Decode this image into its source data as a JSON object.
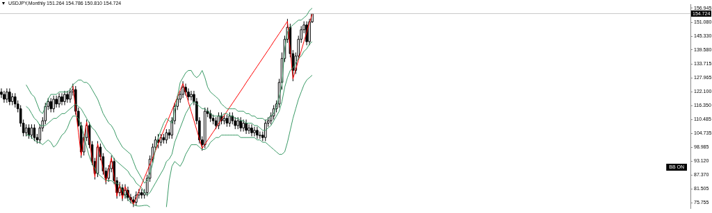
{
  "chart_data": {
    "type": "candlestick",
    "title": "USDJPY,Monthly 151.264 154.786 150.810 154.724",
    "color": "#000000",
    "categories": [
      null,
      null,
      null,
      null,
      null,
      null,
      null,
      null,
      null,
      null,
      null,
      null,
      null,
      null,
      null,
      null,
      null,
      null,
      null,
      null,
      null,
      null,
      null,
      null,
      null,
      null,
      null,
      null,
      null,
      null,
      null,
      null,
      null,
      null,
      null,
      null,
      null,
      null,
      null,
      null,
      null,
      null,
      null,
      null,
      null,
      null,
      null,
      null,
      null,
      null,
      null,
      null,
      null,
      null,
      null,
      null,
      null,
      null,
      null,
      null,
      null,
      null,
      null,
      null,
      null,
      null,
      null,
      null,
      null,
      null,
      null,
      null,
      null,
      null,
      null,
      null,
      null,
      null,
      null,
      null,
      null,
      null,
      null,
      null,
      null,
      null,
      null,
      null,
      null,
      null,
      null,
      null,
      null,
      null,
      null,
      null,
      null,
      null,
      null,
      null,
      null,
      null,
      null,
      null,
      null,
      null,
      null,
      null,
      null,
      null,
      null,
      null,
      null,
      null,
      null,
      null,
      null,
      null,
      null,
      null,
      null,
      null,
      null,
      null,
      null,
      null,
      null,
      null,
      null,
      null,
      null,
      null,
      null,
      null,
      null,
      null,
      null,
      null,
      null,
      null,
      null,
      null,
      null,
      null,
      null,
      null,
      null,
      null,
      null,
      null,
      null,
      null,
      null,
      null,
      null,
      null,
      null,
      null,
      null,
      null,
      null,
      null,
      null,
      null,
      null,
      null,
      null,
      null,
      null,
      null,
      null,
      null,
      null,
      null,
      null,
      null,
      null,
      null,
      null,
      null,
      null,
      null,
      null,
      null,
      null,
      null,
      null,
      null,
      null,
      null,
      null,
      null,
      null,
      null,
      null,
      null,
      null,
      null,
      null,
      null,
      null,
      null,
      null,
      null,
      null,
      null,
      null,
      null,
      null,
      null,
      null,
      null,
      null,
      null,
      null,
      null,
      null,
      null,
      null,
      null,
      null,
      null,
      null,
      null,
      null,
      null,
      null,
      null,
      null,
      null,
      null,
      null,
      null,
      null,
      null,
      null,
      null,
      null,
      null,
      null,
      null,
      null,
      null,
      null,
      null,
      null,
      null,
      null,
      null,
      null,
      null
    ],
    "ohlc": [
      [
        122,
        123.5,
        119.5,
        121
      ],
      [
        121,
        122.5,
        117.5,
        119
      ],
      [
        119,
        123.5,
        117.5,
        122
      ],
      [
        122,
        123.5,
        116.5,
        118
      ],
      [
        118,
        121.5,
        116.5,
        120
      ],
      [
        120,
        121.5,
        115.5,
        117
      ],
      [
        117,
        118.5,
        113.5,
        115
      ],
      [
        115,
        116.5,
        107.5,
        109
      ],
      [
        109,
        110.5,
        103.5,
        105
      ],
      [
        105,
        108.5,
        103.5,
        107
      ],
      [
        107,
        108.5,
        102.5,
        104
      ],
      [
        104,
        108.5,
        102.5,
        107
      ],
      [
        107,
        108.5,
        101.5,
        103
      ],
      [
        103,
        104.5,
        100.5,
        102
      ],
      [
        102,
        108.5,
        100.5,
        107
      ],
      [
        107,
        111.5,
        105.5,
        110
      ],
      [
        110,
        117.5,
        108.5,
        116
      ],
      [
        116,
        119.5,
        114.5,
        118
      ],
      [
        118,
        119.5,
        113.5,
        115
      ],
      [
        115,
        120.5,
        113.5,
        119
      ],
      [
        119,
        120.5,
        115.5,
        117
      ],
      [
        117,
        121.5,
        115.5,
        120
      ],
      [
        120,
        121.5,
        116.5,
        118
      ],
      [
        118,
        122.5,
        116.5,
        121
      ],
      [
        121,
        122.5,
        117.5,
        119
      ],
      [
        119,
        123.5,
        117.5,
        122
      ],
      [
        122,
        125.5,
        120.5,
        123
      ],
      [
        123,
        124.5,
        112.5,
        114
      ],
      [
        114,
        115.5,
        107.5,
        108
      ],
      [
        108,
        109.5,
        94.5,
        97
      ],
      [
        97,
        104.5,
        95.5,
        103
      ],
      [
        103,
        110.5,
        101.5,
        108
      ],
      [
        108,
        109.5,
        98.5,
        100
      ],
      [
        100,
        101.5,
        91.5,
        93
      ],
      [
        93,
        94.5,
        85.5,
        88
      ],
      [
        88,
        101.5,
        86.5,
        99
      ],
      [
        99,
        100.5,
        93.5,
        95
      ],
      [
        95,
        96.5,
        87.5,
        89
      ],
      [
        89,
        90.5,
        83.5,
        86
      ],
      [
        86,
        91.5,
        84.5,
        90
      ],
      [
        90,
        95.5,
        88.5,
        93
      ],
      [
        93,
        94.5,
        83.5,
        85
      ],
      [
        85,
        86.5,
        77.5,
        80
      ],
      [
        80,
        84.5,
        78.5,
        82
      ],
      [
        82,
        83.5,
        76.5,
        79
      ],
      [
        79,
        83.5,
        77.5,
        81
      ],
      [
        81,
        82.5,
        76.5,
        78
      ],
      [
        78,
        79.5,
        75.5,
        77
      ],
      [
        77,
        78.5,
        74,
        76
      ],
      [
        76,
        80.5,
        74.5,
        79
      ],
      [
        79,
        81.5,
        77.5,
        80
      ],
      [
        80,
        81.5,
        77.5,
        79
      ],
      [
        79,
        81.5,
        77.5,
        80
      ],
      [
        80,
        87.5,
        78.5,
        86
      ],
      [
        86,
        95.5,
        84.5,
        94
      ],
      [
        94,
        100.5,
        92.5,
        99
      ],
      [
        99,
        103.5,
        97.5,
        102
      ],
      [
        102,
        104.5,
        98.5,
        101
      ],
      [
        101,
        104.5,
        99.5,
        103
      ],
      [
        103,
        104.5,
        100.5,
        102
      ],
      [
        102,
        106.5,
        100.5,
        105
      ],
      [
        105,
        106.5,
        102.5,
        104
      ],
      [
        104,
        111.5,
        102.5,
        110
      ],
      [
        110,
        117.5,
        108.5,
        116
      ],
      [
        116,
        120.5,
        114.5,
        119
      ],
      [
        119,
        122.5,
        117.5,
        121
      ],
      [
        121,
        126.5,
        119.5,
        124
      ],
      [
        124,
        125.5,
        120.5,
        122
      ],
      [
        122,
        123.5,
        118.5,
        120
      ],
      [
        120,
        122.5,
        118.5,
        121
      ],
      [
        121,
        122.5,
        116.5,
        118
      ],
      [
        118,
        119.5,
        108.5,
        110
      ],
      [
        110,
        111.5,
        100.5,
        102
      ],
      [
        102,
        103.5,
        97.5,
        100
      ],
      [
        100,
        115.5,
        98.5,
        114
      ],
      [
        114,
        115.5,
        111.5,
        113
      ],
      [
        113,
        114.5,
        109.5,
        111
      ],
      [
        111,
        112.5,
        108.5,
        110
      ],
      [
        110,
        111.5,
        106.5,
        108
      ],
      [
        108,
        113.5,
        106.5,
        112
      ],
      [
        112,
        113.5,
        108.5,
        110
      ],
      [
        110,
        112.5,
        108.5,
        111
      ],
      [
        111,
        112.5,
        107.5,
        109
      ],
      [
        109,
        113.5,
        107.5,
        112
      ],
      [
        112,
        113.5,
        108.5,
        110
      ],
      [
        110,
        111.5,
        106.5,
        108
      ],
      [
        108,
        111.5,
        106.5,
        110
      ],
      [
        110,
        111.5,
        105.5,
        107
      ],
      [
        107,
        110.5,
        105.5,
        109
      ],
      [
        109,
        110.5,
        104.5,
        106
      ],
      [
        106,
        108.5,
        104.5,
        107
      ],
      [
        107,
        108.5,
        103.5,
        105
      ],
      [
        105,
        107.5,
        103.5,
        106
      ],
      [
        106,
        107.5,
        102.5,
        104
      ],
      [
        104,
        105.5,
        102.5,
        104
      ],
      [
        104,
        105.5,
        101.5,
        103
      ],
      [
        103,
        110.5,
        101.5,
        109
      ],
      [
        109,
        111.5,
        107.5,
        110
      ],
      [
        110,
        113.5,
        108.5,
        112
      ],
      [
        112,
        116.5,
        110.5,
        115
      ],
      [
        115,
        118.5,
        113.5,
        117
      ],
      [
        117,
        127.5,
        115.5,
        126
      ],
      [
        126,
        138.5,
        123,
        136
      ],
      [
        136,
        145.5,
        134.5,
        144
      ],
      [
        144,
        152.5,
        142.5,
        149
      ],
      [
        149,
        150.5,
        136.5,
        138
      ],
      [
        138,
        139.5,
        126.5,
        131
      ],
      [
        131,
        138.5,
        129.5,
        137
      ],
      [
        137,
        145.5,
        135.5,
        144
      ],
      [
        144,
        149.5,
        142.5,
        148
      ],
      [
        148,
        151.5,
        146.5,
        150
      ],
      [
        150,
        151.5,
        141.5,
        143
      ],
      [
        143,
        152.5,
        141.5,
        151.264
      ],
      [
        151.264,
        154.786,
        150.81,
        154.724
      ],
      null,
      null,
      null,
      null,
      null,
      null,
      null,
      null,
      null,
      null,
      null,
      null,
      null,
      null,
      null,
      null,
      null,
      null,
      null,
      null,
      null,
      null,
      null,
      null,
      null,
      null,
      null,
      null,
      null,
      null,
      null,
      null,
      null,
      null,
      null,
      null,
      null,
      null,
      null,
      null,
      null,
      null,
      null,
      null,
      null,
      null,
      null,
      null,
      null,
      null,
      null,
      null,
      null,
      null,
      null,
      null,
      null,
      null,
      null,
      null,
      null,
      null,
      null,
      null,
      null,
      null,
      null,
      null,
      null,
      null,
      null,
      null,
      null,
      null,
      null,
      null,
      null,
      null,
      null,
      null,
      null,
      null,
      null,
      null,
      null,
      null,
      null,
      null,
      null,
      null,
      null,
      null,
      null,
      null,
      null,
      null,
      null,
      null,
      null,
      null,
      null,
      null,
      null,
      null,
      null,
      null,
      null,
      null,
      null,
      null,
      null,
      null,
      null,
      null,
      null,
      null,
      null,
      null,
      null,
      null,
      null,
      null,
      null,
      null,
      null,
      null,
      null,
      null,
      null,
      null,
      null,
      null,
      null,
      null,
      null,
      null,
      null
    ],
    "series": [
      {
        "type": "line",
        "color": "#3a9a66",
        "values": [
          null,
          null,
          null,
          null,
          null,
          null,
          null,
          null,
          null,
          125,
          123,
          121,
          120,
          117,
          114,
          113,
          116,
          119,
          121,
          121,
          121,
          122,
          122,
          122,
          122,
          123,
          125,
          126,
          127,
          127,
          126,
          126,
          125,
          123,
          121,
          119,
          116,
          113,
          111,
          109,
          108,
          106,
          103,
          101,
          99,
          98,
          97,
          96,
          93,
          90,
          88,
          86,
          84,
          85,
          88,
          92,
          98,
          103,
          106,
          109,
          111,
          110,
          109,
          114,
          120,
          126,
          128,
          130,
          131,
          131,
          129,
          128,
          129,
          131,
          128,
          124,
          122,
          121,
          120,
          119,
          117,
          116,
          115,
          115,
          115,
          115,
          114,
          114,
          114,
          113,
          113,
          112,
          112,
          111,
          111,
          111,
          110,
          111,
          112,
          113,
          116,
          120,
          125,
          140,
          147,
          149,
          150,
          151,
          152,
          152,
          153,
          154,
          156,
          157,
          null,
          null,
          null,
          null,
          null,
          null,
          null,
          null,
          null,
          null,
          null,
          null,
          null,
          null,
          null,
          null,
          null,
          null,
          null,
          null,
          null,
          null,
          null,
          null,
          null,
          null,
          null,
          null,
          null,
          null,
          null,
          null,
          null,
          null,
          null,
          null,
          null,
          null,
          null,
          null,
          null,
          null,
          null,
          null,
          null,
          null,
          null,
          null,
          null,
          null,
          null,
          null,
          null,
          null,
          null,
          null,
          null,
          null,
          null,
          null,
          null,
          null,
          null,
          null,
          null,
          null,
          null,
          null,
          null,
          null,
          null,
          null,
          null,
          null,
          null,
          null,
          null,
          null,
          null,
          null,
          null,
          null,
          null,
          null,
          null,
          null,
          null,
          null,
          null,
          null,
          null,
          null,
          null,
          null,
          null,
          null,
          null,
          null,
          null,
          null,
          null,
          null,
          null,
          null,
          null,
          null,
          null,
          null,
          null,
          null,
          null,
          null,
          null,
          null,
          null,
          null,
          null,
          null,
          null,
          null,
          null,
          null,
          null,
          null,
          null,
          null,
          null,
          null,
          null,
          null,
          null,
          null,
          null,
          null,
          null,
          null,
          null
        ]
      },
      {
        "type": "line",
        "color": "#3a9a66",
        "values": [
          null,
          null,
          null,
          null,
          null,
          null,
          null,
          null,
          null,
          116,
          115,
          113,
          111,
          110,
          108,
          108,
          108,
          109,
          110,
          111,
          111,
          112,
          113,
          113,
          114,
          115,
          116,
          117,
          116,
          115,
          113,
          111,
          109,
          107,
          106,
          104,
          102,
          100,
          98,
          97,
          96,
          94,
          93,
          92,
          91,
          90,
          89,
          87,
          86,
          84,
          83,
          82,
          80,
          79,
          80,
          82,
          84,
          86,
          88,
          90,
          93,
          94,
          96,
          101,
          104,
          107,
          110,
          113,
          115,
          117,
          118,
          117,
          116,
          115,
          115,
          114,
          113,
          112,
          112,
          112,
          112,
          113,
          113,
          112,
          112,
          111,
          111,
          110,
          110,
          109,
          109,
          109,
          108,
          108,
          107,
          106,
          106,
          107,
          108,
          110,
          112,
          114,
          118,
          124,
          128,
          131,
          132,
          134,
          136,
          137,
          139,
          140,
          142,
          143,
          null,
          null,
          null,
          null,
          null,
          null,
          null,
          null,
          null,
          null,
          null,
          null,
          null,
          null,
          null,
          null,
          null,
          null,
          null,
          null,
          null,
          null,
          null,
          null,
          null,
          null,
          null,
          null,
          null,
          null,
          null,
          null,
          null,
          null,
          null,
          null,
          null,
          null,
          null,
          null,
          null,
          null,
          null,
          null,
          null,
          null,
          null,
          null,
          null,
          null,
          null,
          null,
          null,
          null,
          null,
          null,
          null,
          null,
          null,
          null,
          null,
          null,
          null,
          null,
          null,
          null,
          null,
          null,
          null,
          null,
          null,
          null,
          null,
          null,
          null,
          null,
          null,
          null,
          null,
          null,
          null,
          null,
          null,
          null,
          null,
          null,
          null,
          null,
          null,
          null,
          null,
          null,
          null,
          null,
          null,
          null,
          null,
          null,
          null,
          null,
          null,
          null,
          null,
          null,
          null,
          null,
          null,
          null,
          null,
          null,
          null,
          null,
          null,
          null,
          null,
          null,
          null,
          null,
          null,
          null,
          null,
          null,
          null,
          null,
          null,
          null,
          null,
          null,
          null,
          null,
          null,
          null,
          null,
          null,
          null,
          null,
          null
        ]
      },
      {
        "type": "line",
        "color": "#3a9a66",
        "values": [
          null,
          null,
          null,
          null,
          null,
          null,
          null,
          null,
          null,
          104,
          104,
          103,
          102,
          101,
          101,
          100,
          101,
          102,
          101,
          99,
          100,
          102,
          104,
          105,
          107,
          110,
          112,
          112,
          111,
          108,
          104,
          99,
          95,
          92,
          90,
          88,
          87,
          86,
          85,
          85,
          85,
          84,
          84,
          83,
          81,
          79,
          77,
          76,
          75,
          74.5,
          74.4,
          74.5,
          74.7,
          74.7,
          74,
          null,
          null,
          null,
          null,
          null,
          74,
          85,
          91,
          93,
          92,
          91,
          93,
          96,
          98,
          100,
          100,
          100,
          99,
          98,
          98,
          99,
          101,
          102,
          103,
          103,
          104,
          104,
          104,
          104,
          104,
          104,
          104,
          103,
          103,
          103,
          103,
          103,
          103,
          102,
          102,
          101,
          101,
          100,
          99,
          98,
          97,
          96,
          96,
          97,
          101,
          106,
          111,
          115,
          119,
          122,
          125,
          127,
          128,
          129,
          null,
          null,
          null,
          null,
          null,
          null,
          null,
          null,
          null,
          null,
          null,
          null,
          null,
          null,
          null,
          null,
          null,
          null,
          null,
          null,
          null,
          null,
          null,
          null,
          null,
          null,
          null,
          null,
          null,
          null,
          null,
          null,
          null,
          null,
          null,
          null,
          null,
          null,
          null,
          null,
          null,
          null,
          null,
          null,
          null,
          null,
          null,
          null,
          null,
          null,
          null,
          null,
          null,
          null,
          null,
          null,
          null,
          null,
          null,
          null,
          null,
          null,
          null,
          null,
          null,
          null,
          null,
          null,
          null,
          null,
          null,
          null,
          null,
          null,
          null,
          null,
          null,
          null,
          null,
          null,
          null,
          null,
          null,
          null,
          null,
          null,
          null,
          null,
          null,
          null,
          null,
          null,
          null,
          null,
          null,
          null,
          null,
          null,
          null,
          null,
          null,
          null,
          null,
          null,
          null,
          null,
          null,
          null,
          null,
          null,
          null,
          null,
          null,
          null,
          null,
          null,
          null,
          null,
          null,
          null,
          null,
          null,
          null,
          null,
          null,
          null,
          null,
          null,
          null,
          null,
          null,
          null,
          null,
          null,
          null,
          null,
          null
        ]
      },
      {
        "type": "line",
        "color": "#ff0000",
        "values": [
          null,
          null,
          null,
          null,
          null,
          null,
          null,
          null,
          null,
          null,
          null,
          null,
          null,
          null,
          null,
          null,
          null,
          null,
          null,
          null,
          null,
          null,
          null,
          null,
          null,
          null,
          124.5,
          114.8,
          105.2,
          95.5,
          102.5,
          109.5,
          101.8,
          94.2,
          86.5,
          100.5,
          95.2,
          89.8,
          84.5,
          89.5,
          94.5,
          86.5,
          78.5,
          83.5,
          77.5,
          82.5,
          80,
          77.5,
          75,
          77.8,
          80.6,
          83.4,
          86.2,
          89,
          91.8,
          94.6,
          97.4,
          100.3,
          103.1,
          105.9,
          108.7,
          111.5,
          114.3,
          117.1,
          119.9,
          122.7,
          125.5,
          121.6,
          117.8,
          113.9,
          110.1,
          106.2,
          102.4,
          98.5,
          100.2,
          101.9,
          103.6,
          105.3,
          107,
          108.8,
          110.5,
          112.2,
          113.9,
          115.6,
          117.3,
          119,
          120.7,
          122.4,
          124.1,
          125.9,
          127.6,
          129.3,
          131,
          132.7,
          134.4,
          136.1,
          137.8,
          139.5,
          141.2,
          143,
          144.7,
          146.4,
          148.1,
          149.8,
          151.5,
          139.5,
          127.5,
          131.4,
          135.3,
          139.2,
          143.1,
          147,
          150.9,
          154.5,
          null,
          null,
          null,
          null,
          null,
          null,
          null,
          null,
          null,
          null,
          null,
          null,
          null,
          null,
          null,
          null,
          null,
          null,
          null,
          null,
          null,
          null,
          null,
          null,
          null,
          null,
          null,
          null,
          null,
          null,
          null,
          null,
          null,
          null,
          null,
          null,
          null,
          null,
          null,
          null,
          null,
          null,
          null,
          null,
          null,
          null,
          null,
          null,
          null,
          null,
          null,
          null,
          null,
          null,
          null,
          null,
          null,
          null,
          null,
          null,
          null,
          null,
          null,
          null,
          null,
          null,
          null,
          null,
          null,
          null,
          null,
          null,
          null,
          null,
          null,
          null,
          null,
          null,
          null,
          null,
          null,
          null,
          null,
          null,
          null,
          null,
          null,
          null,
          null,
          null,
          null,
          null,
          null,
          null,
          null,
          null,
          null,
          null,
          null,
          null,
          null,
          null,
          null,
          null,
          null,
          null,
          null,
          null,
          null,
          null,
          null,
          null,
          null,
          null,
          null,
          null,
          null,
          null,
          null,
          null,
          null,
          null,
          null,
          null,
          null,
          null,
          null,
          null,
          null,
          null,
          null,
          null,
          null,
          null,
          null,
          null,
          null
        ]
      }
    ],
    "colors": [
      "#000000",
      "#000000",
      "#ffffff",
      "#000000",
      "#ffffff",
      "#000000",
      "#000000",
      "#000000",
      "#000000",
      "#ffffff",
      "#000000",
      "#ffffff",
      "#000000",
      "#000000",
      "#ffffff",
      "#ffffff",
      "#ffffff",
      "#ffffff",
      "#000000",
      "#ffffff",
      "#000000",
      "#ffffff",
      "#000000",
      "#ffffff",
      "#000000",
      "#ffffff",
      "#ffffff",
      "#000000",
      "#000000",
      "#000000",
      "#ffffff",
      "#ffffff",
      "#000000",
      "#000000",
      "#000000",
      "#ffffff",
      "#000000",
      "#000000",
      "#000000",
      "#ffffff",
      "#ffffff",
      "#000000",
      "#000000",
      "#ffffff",
      "#000000",
      "#ffffff",
      "#000000",
      "#000000",
      "#000000",
      "#ffffff",
      "#ffffff",
      "#000000",
      "#ffffff",
      "#ffffff",
      "#ffffff",
      "#ffffff",
      "#ffffff",
      "#000000",
      "#ffffff",
      "#000000",
      "#ffffff",
      "#000000",
      "#ffffff",
      "#ffffff",
      "#ffffff",
      "#ffffff",
      "#ffffff",
      "#000000",
      "#000000",
      "#ffffff",
      "#000000",
      "#000000",
      "#000000",
      "#000000",
      "#ffffff",
      "#000000",
      "#000000",
      "#000000",
      "#000000",
      "#ffffff",
      "#000000",
      "#ffffff",
      "#000000",
      "#ffffff",
      "#000000",
      "#000000",
      "#ffffff",
      "#000000",
      "#ffffff",
      "#000000",
      "#ffffff",
      "#000000",
      "#ffffff",
      "#000000",
      "#ffffff",
      "#000000",
      "#ffffff",
      "#ffffff",
      "#ffffff",
      "#ffffff",
      "#ffffff",
      "#ffffff",
      "#ffffff",
      "#ffffff",
      "#ffffff",
      "#000000",
      "#000000",
      "#ffffff",
      "#ffffff",
      "#ffffff",
      "#ffffff",
      "#000000",
      "#ffffff",
      "#ffffff",
      null,
      null,
      null,
      null,
      null,
      null,
      null,
      null,
      null,
      null,
      null,
      null,
      null,
      null,
      null,
      null,
      null,
      null,
      null,
      null,
      null,
      null,
      null,
      null,
      null,
      null,
      null,
      null,
      null,
      null,
      null,
      null,
      null,
      null,
      null,
      null,
      null,
      null,
      null,
      null,
      null,
      null,
      null,
      null,
      null,
      null,
      null,
      null,
      null,
      null,
      null,
      null,
      null,
      null,
      null,
      null,
      null,
      null,
      null,
      null,
      null,
      null,
      null,
      null,
      null,
      null,
      null,
      null,
      null,
      null,
      null,
      null,
      null,
      null,
      null,
      null,
      null,
      null,
      null,
      null,
      null,
      null,
      null,
      null,
      null,
      null,
      null,
      null,
      null,
      null,
      null,
      null,
      null,
      null,
      null,
      null,
      null,
      null,
      null,
      null,
      null,
      null,
      null,
      null,
      null,
      null,
      null,
      null,
      null,
      null,
      null,
      null,
      null,
      null,
      null,
      null,
      null,
      null,
      null,
      null,
      null,
      null,
      null,
      null,
      null,
      null,
      null,
      null,
      null,
      null,
      null,
      null,
      null,
      null,
      null,
      null,
      null
    ],
    "ylim": [
      73.3,
      158.6
    ],
    "yticks": [
      156.945,
      {
        "value": 151.08,
        "label": "151.080"
      },
      {
        "value": 145.33,
        "label": "145.330"
      },
      {
        "value": 139.58,
        "label": "139.580"
      },
      133.715,
      127.965,
      {
        "value": 122.1,
        "label": "122.100"
      },
      {
        "value": 116.35,
        "label": "116.350"
      },
      110.485,
      104.735,
      98.985,
      {
        "value": 93.12,
        "label": "93.120"
      },
      {
        "value": 87.37,
        "label": "87.370"
      },
      81.505,
      75.755
    ],
    "ref_lines": [
      {
        "axis": "y",
        "value": 154.724,
        "label": "154.724",
        "color": "#c8c8c8"
      }
    ],
    "annotations": [
      "BB ON"
    ]
  }
}
